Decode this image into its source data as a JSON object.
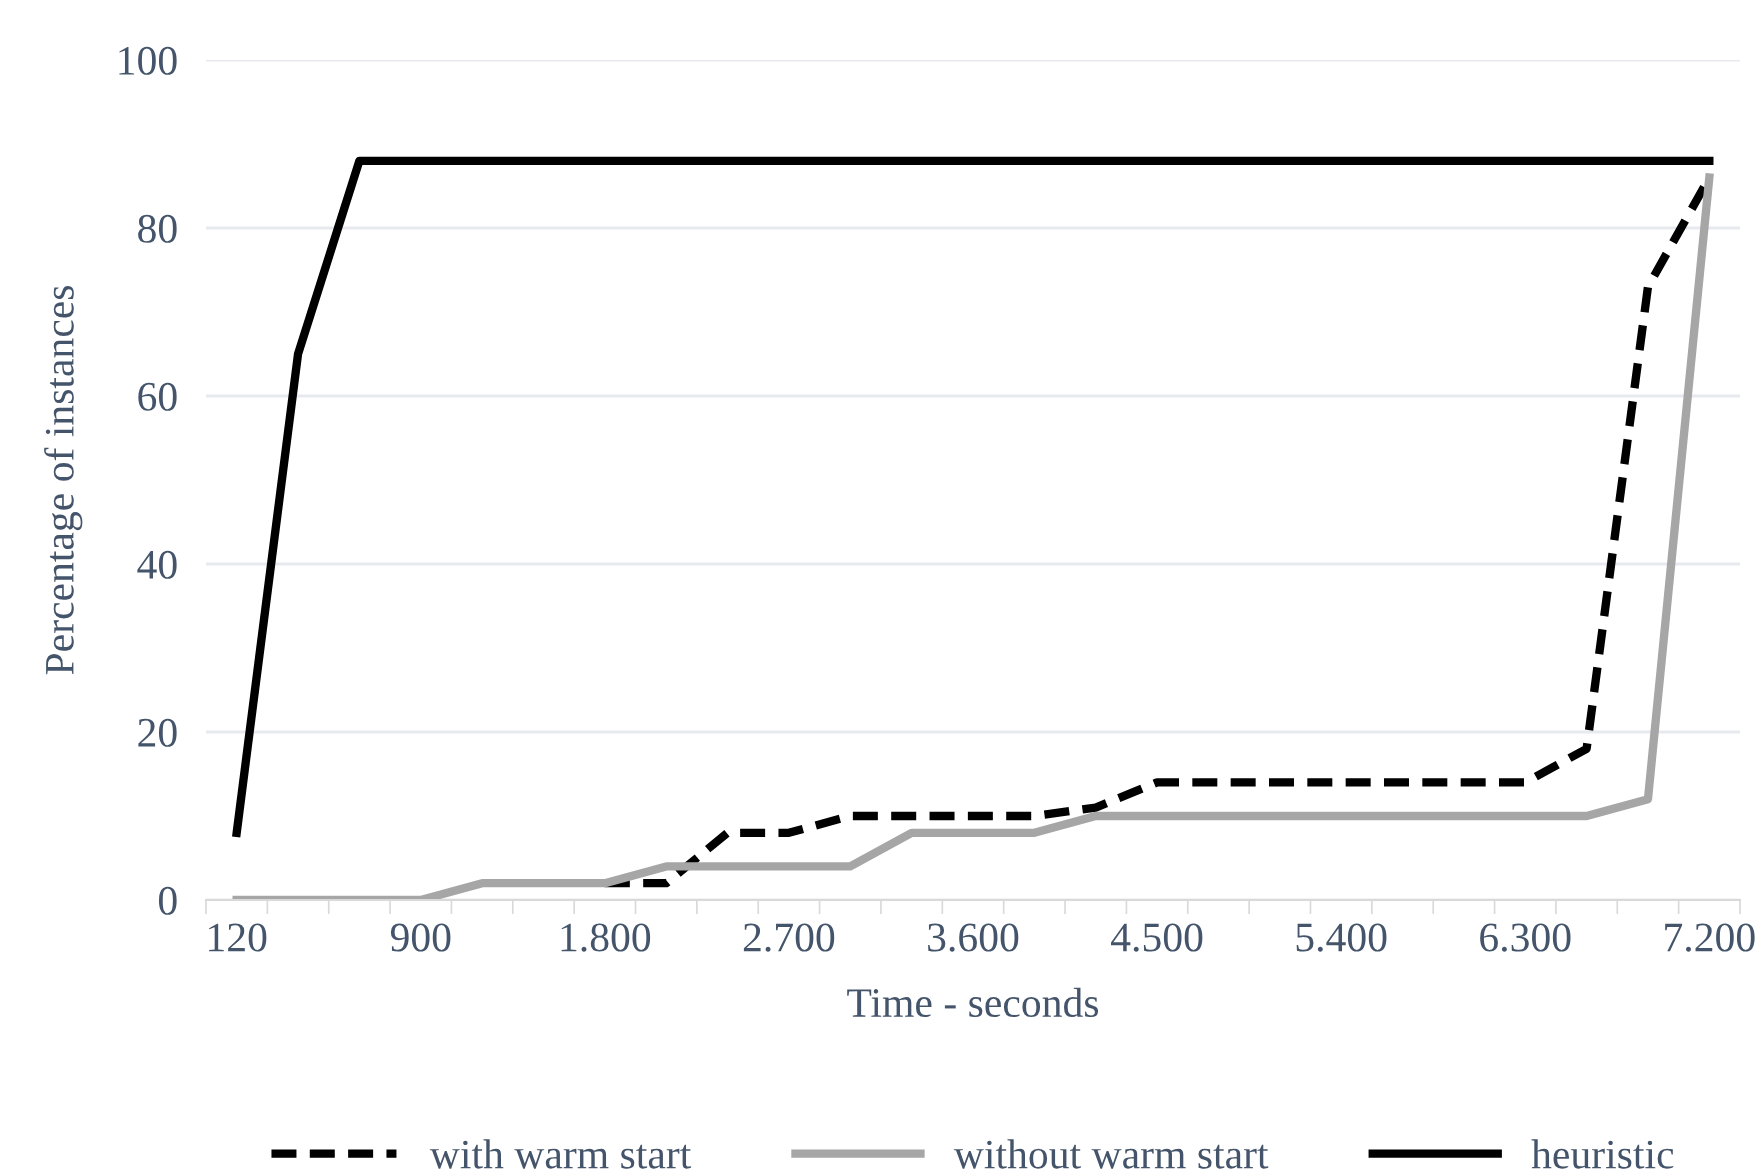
{
  "chart_data": {
    "type": "line",
    "xlabel": "Time - seconds",
    "ylabel": "Percentage of instances",
    "categories": [
      "120",
      null,
      null,
      "900",
      null,
      null,
      "1.800",
      null,
      null,
      "2.700",
      null,
      null,
      "3.600",
      null,
      null,
      "4.500",
      null,
      null,
      "5.400",
      null,
      null,
      "6.300",
      null,
      null,
      "7.200"
    ],
    "series": [
      {
        "name": "with warm start",
        "color": "#000000",
        "line_style": "dashed",
        "values": [
          null,
          null,
          null,
          null,
          null,
          null,
          2,
          2,
          8,
          8,
          10,
          10,
          10,
          10,
          11,
          14,
          14,
          14,
          14,
          14,
          14,
          14,
          18,
          73,
          86
        ]
      },
      {
        "name": "without warm start",
        "color": "#a6a6a6",
        "line_style": "solid",
        "values": [
          0,
          0,
          0,
          0,
          2,
          2,
          2,
          4,
          4,
          4,
          4,
          8,
          8,
          8,
          10,
          10,
          10,
          10,
          10,
          10,
          10,
          10,
          10,
          12,
          86
        ]
      },
      {
        "name": "heuristic",
        "color": "#000000",
        "line_style": "solid",
        "values": [
          8,
          65,
          88,
          88,
          88,
          88,
          88,
          88,
          88,
          88,
          88,
          88,
          88,
          88,
          88,
          88,
          88,
          88,
          88,
          88,
          88,
          88,
          88,
          88,
          88
        ]
      }
    ],
    "ylim": [
      0,
      100
    ],
    "yticks": [
      0,
      20,
      40,
      60,
      80,
      100
    ],
    "grid": "y",
    "legend": "bottom",
    "marker": "none"
  }
}
